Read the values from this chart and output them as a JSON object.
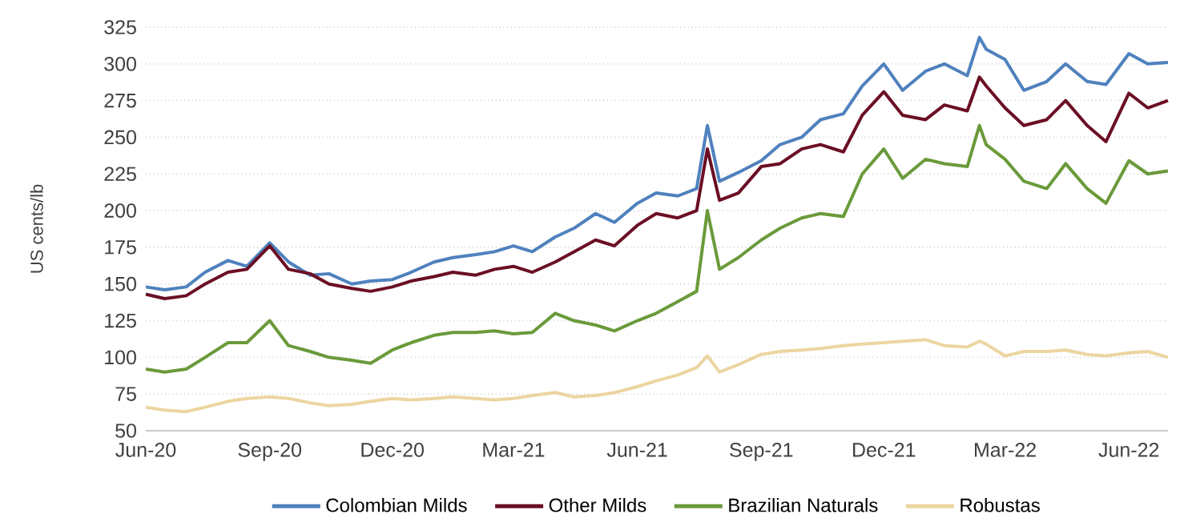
{
  "chart_data": {
    "type": "line",
    "ylabel": "US cents/lb",
    "x": [
      "2020-06-01",
      "2020-06-15",
      "2020-07-01",
      "2020-07-15",
      "2020-08-01",
      "2020-08-15",
      "2020-09-01",
      "2020-09-15",
      "2020-10-01",
      "2020-10-15",
      "2020-11-01",
      "2020-11-15",
      "2020-12-01",
      "2020-12-15",
      "2021-01-01",
      "2021-01-15",
      "2021-02-01",
      "2021-02-15",
      "2021-03-01",
      "2021-03-15",
      "2021-04-01",
      "2021-04-15",
      "2021-05-01",
      "2021-05-15",
      "2021-06-01",
      "2021-06-15",
      "2021-07-01",
      "2021-07-15",
      "2021-07-23",
      "2021-08-01",
      "2021-08-15",
      "2021-09-01",
      "2021-09-15",
      "2021-10-01",
      "2021-10-15",
      "2021-11-01",
      "2021-11-15",
      "2021-12-01",
      "2021-12-15",
      "2022-01-01",
      "2022-01-15",
      "2022-02-01",
      "2022-02-10",
      "2022-02-15",
      "2022-03-01",
      "2022-03-15",
      "2022-04-01",
      "2022-04-15",
      "2022-05-01",
      "2022-05-15",
      "2022-06-01",
      "2022-06-15",
      "2022-06-30"
    ],
    "series": [
      {
        "name": "Colombian Milds",
        "color": "#4f81bd",
        "values": [
          148,
          146,
          148,
          158,
          166,
          162,
          178,
          165,
          156,
          157,
          150,
          152,
          153,
          158,
          165,
          168,
          170,
          172,
          176,
          172,
          182,
          188,
          198,
          192,
          205,
          212,
          210,
          215,
          258,
          220,
          226,
          234,
          245,
          250,
          262,
          266,
          285,
          300,
          282,
          295,
          300,
          292,
          318,
          310,
          303,
          282,
          288,
          300,
          288,
          286,
          307,
          300,
          301
        ]
      },
      {
        "name": "Other Milds",
        "color": "#6b0f24",
        "values": [
          143,
          140,
          142,
          150,
          158,
          160,
          176,
          160,
          157,
          150,
          147,
          145,
          148,
          152,
          155,
          158,
          156,
          160,
          162,
          158,
          165,
          172,
          180,
          176,
          190,
          198,
          195,
          200,
          242,
          207,
          212,
          230,
          232,
          242,
          245,
          240,
          265,
          281,
          265,
          262,
          272,
          268,
          291,
          285,
          270,
          258,
          262,
          275,
          258,
          247,
          280,
          270,
          275
        ]
      },
      {
        "name": "Brazilian Naturals",
        "color": "#6a9a3a",
        "values": [
          92,
          90,
          92,
          100,
          110,
          110,
          125,
          108,
          104,
          100,
          98,
          96,
          105,
          110,
          115,
          117,
          117,
          118,
          116,
          117,
          130,
          125,
          122,
          118,
          125,
          130,
          138,
          145,
          200,
          160,
          168,
          180,
          188,
          195,
          198,
          196,
          225,
          242,
          222,
          235,
          232,
          230,
          258,
          245,
          235,
          220,
          215,
          232,
          215,
          205,
          234,
          225,
          227
        ]
      },
      {
        "name": "Robustas",
        "color": "#ecd5a0",
        "values": [
          66,
          64,
          63,
          66,
          70,
          72,
          73,
          72,
          69,
          67,
          68,
          70,
          72,
          71,
          72,
          73,
          72,
          71,
          72,
          74,
          76,
          73,
          74,
          76,
          80,
          84,
          88,
          93,
          101,
          90,
          95,
          102,
          104,
          105,
          106,
          108,
          109,
          110,
          111,
          112,
          108,
          107,
          111,
          109,
          101,
          104,
          104,
          105,
          102,
          101,
          103,
          104,
          100
        ]
      }
    ],
    "xlim": [
      "2020-06-01",
      "2022-06-30"
    ],
    "xticks": [
      {
        "value": "2020-06-01",
        "label": "Jun-20"
      },
      {
        "value": "2020-09-01",
        "label": "Sep-20"
      },
      {
        "value": "2020-12-01",
        "label": "Dec-20"
      },
      {
        "value": "2021-03-01",
        "label": "Mar-21"
      },
      {
        "value": "2021-06-01",
        "label": "Jun-21"
      },
      {
        "value": "2021-09-01",
        "label": "Sep-21"
      },
      {
        "value": "2021-12-01",
        "label": "Dec-21"
      },
      {
        "value": "2022-03-01",
        "label": "Mar-22"
      },
      {
        "value": "2022-06-01",
        "label": "Jun-22"
      }
    ],
    "ylim": [
      50,
      325
    ],
    "yticks": [
      50,
      75,
      100,
      125,
      150,
      175,
      200,
      225,
      250,
      275,
      300,
      325
    ],
    "grid": "y",
    "legend": "bottom",
    "marker": "none",
    "line_style": "solid"
  }
}
